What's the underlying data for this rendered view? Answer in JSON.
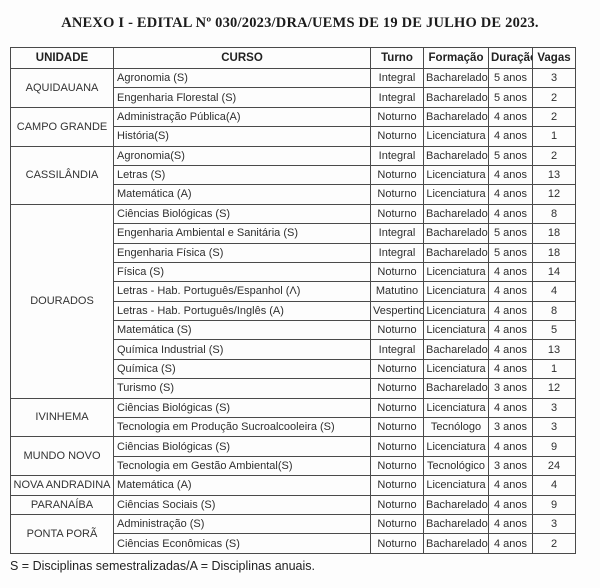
{
  "title": "ANEXO I - EDITAL Nº 030/2023/DRA/UEMS DE 19 DE JULHO DE 2023.",
  "footnote": "S = Disciplinas semestralizadas/A = Disciplinas anuais.",
  "table": {
    "headers": [
      "UNIDADE",
      "CURSO",
      "Turno",
      "Formação",
      "Duração",
      "Vagas"
    ],
    "groups": [
      {
        "unidade": "AQUIDAUANA",
        "rows": [
          {
            "curso": "Agronomia (S)",
            "turno": "Integral",
            "formacao": "Bacharelado",
            "duracao": "5 anos",
            "vagas": 3
          },
          {
            "curso": "Engenharia Florestal (S)",
            "turno": "Integral",
            "formacao": "Bacharelado",
            "duracao": "5 anos",
            "vagas": 2
          }
        ]
      },
      {
        "unidade": "CAMPO GRANDE",
        "rows": [
          {
            "curso": "Administração Pública(A)",
            "turno": "Noturno",
            "formacao": "Bacharelado",
            "duracao": "4 anos",
            "vagas": 2
          },
          {
            "curso": "História(S)",
            "turno": "Noturno",
            "formacao": "Licenciatura",
            "duracao": "4 anos",
            "vagas": 1
          }
        ]
      },
      {
        "unidade": "CASSILÂNDIA",
        "rows": [
          {
            "curso": "Agronomia(S)",
            "turno": "Integral",
            "formacao": "Bacharelado",
            "duracao": "5 anos",
            "vagas": 2
          },
          {
            "curso": "Letras (S)",
            "turno": "Noturno",
            "formacao": "Licenciatura",
            "duracao": "4 anos",
            "vagas": 13
          },
          {
            "curso": "Matemática (A)",
            "turno": "Noturno",
            "formacao": "Licenciatura",
            "duracao": "4 anos",
            "vagas": 12
          }
        ]
      },
      {
        "unidade": "DOURADOS",
        "rows": [
          {
            "curso": "Ciências Biológicas (S)",
            "turno": "Noturno",
            "formacao": "Bacharelado",
            "duracao": "4 anos",
            "vagas": 8
          },
          {
            "curso": "Engenharia Ambiental e Sanitária (S)",
            "turno": "Integral",
            "formacao": "Bacharelado",
            "duracao": "5 anos",
            "vagas": 18
          },
          {
            "curso": "Engenharia Física (S)",
            "turno": "Integral",
            "formacao": "Bacharelado",
            "duracao": "5 anos",
            "vagas": 18
          },
          {
            "curso": "Física (S)",
            "turno": "Noturno",
            "formacao": "Licenciatura",
            "duracao": "4 anos",
            "vagas": 14
          },
          {
            "curso": "Letras - Hab. Português/Espanhol (Λ)",
            "turno": "Matutino",
            "formacao": "Licenciatura",
            "duracao": "4 anos",
            "vagas": 4
          },
          {
            "curso": "Letras - Hab. Português/Inglês (A)",
            "turno": "Vespertino",
            "formacao": "Licenciatura",
            "duracao": "4 anos",
            "vagas": 8
          },
          {
            "curso": "Matemática (S)",
            "turno": "Noturno",
            "formacao": "Licenciatura",
            "duracao": "4 anos",
            "vagas": 5
          },
          {
            "curso": "Química Industrial (S)",
            "turno": "Integral",
            "formacao": "Bacharelado",
            "duracao": "4 anos",
            "vagas": 13
          },
          {
            "curso": "Química (S)",
            "turno": "Noturno",
            "formacao": "Licenciatura",
            "duracao": "4 anos",
            "vagas": 1
          },
          {
            "curso": "Turismo (S)",
            "turno": "Noturno",
            "formacao": "Bacharelado",
            "duracao": "3 anos",
            "vagas": 12
          }
        ]
      },
      {
        "unidade": "IVINHEMA",
        "rows": [
          {
            "curso": "Ciências Biológicas (S)",
            "turno": "Noturno",
            "formacao": "Licenciatura",
            "duracao": "4 anos",
            "vagas": 3
          },
          {
            "curso": "Tecnologia em Produção Sucroalcooleira (S)",
            "turno": "Noturno",
            "formacao": "Tecnólogo",
            "duracao": "3 anos",
            "vagas": 3
          }
        ]
      },
      {
        "unidade": "MUNDO NOVO",
        "rows": [
          {
            "curso": "Ciências Biológicas (S)",
            "turno": "Noturno",
            "formacao": "Licenciatura",
            "duracao": "4 anos",
            "vagas": 9
          },
          {
            "curso": "Tecnologia em Gestão Ambiental(S)",
            "turno": "Noturno",
            "formacao": "Tecnológico",
            "duracao": "3 anos",
            "vagas": 24
          }
        ]
      },
      {
        "unidade": "NOVA ANDRADINA",
        "rows": [
          {
            "curso": "Matemática (A)",
            "turno": "Noturno",
            "formacao": "Licenciatura",
            "duracao": "4 anos",
            "vagas": 4
          }
        ]
      },
      {
        "unidade": "PARANAÍBA",
        "rows": [
          {
            "curso": "Ciências Sociais (S)",
            "turno": "Noturno",
            "formacao": "Bacharelado",
            "duracao": "4 anos",
            "vagas": 9
          }
        ]
      },
      {
        "unidade": "PONTA PORÃ",
        "rows": [
          {
            "curso": "Administração (S)",
            "turno": "Noturno",
            "formacao": "Bacharelado",
            "duracao": "4 anos",
            "vagas": 3
          },
          {
            "curso": "Ciências  Econômicas (S)",
            "turno": "Noturno",
            "formacao": "Bacharelado",
            "duracao": "4 anos",
            "vagas": 2
          }
        ]
      }
    ]
  }
}
